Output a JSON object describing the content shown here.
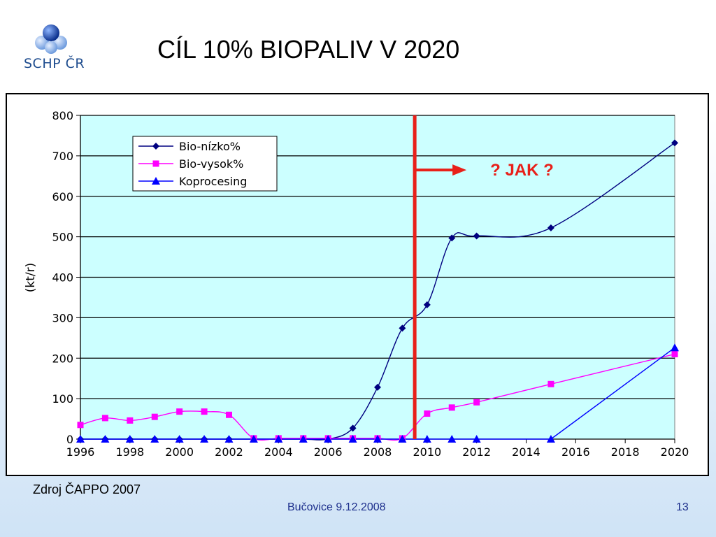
{
  "logo": {
    "text": "SCHP ČR"
  },
  "title": "CÍL 10% BIOPALIV V 2020",
  "source": "Zdroj ČAPPO 2007",
  "footer": {
    "center": "Bučovice 9.12.2008",
    "page": "13"
  },
  "colors": {
    "plot_bg": "#ccffff",
    "bio_nizko": "#000080",
    "bio_vysok": "#ff00ff",
    "koprocesing": "#0000ff",
    "marker_line": "#e8201a"
  },
  "chart_data": {
    "type": "line",
    "title": "",
    "xlabel": "",
    "ylabel": "(kt/r)",
    "xlim": [
      1996,
      2020
    ],
    "ylim": [
      0,
      800
    ],
    "x_ticks": [
      1996,
      1998,
      2000,
      2002,
      2004,
      2006,
      2008,
      2010,
      2012,
      2014,
      2016,
      2018,
      2020
    ],
    "y_ticks": [
      0,
      100,
      200,
      300,
      400,
      500,
      600,
      700,
      800
    ],
    "grid": "horizontal",
    "legend_position": "top-left",
    "series": [
      {
        "name": "Bio-nízko%",
        "marker": "diamond",
        "color": "#000080",
        "x": [
          1996,
          1997,
          1998,
          1999,
          2000,
          2001,
          2002,
          2003,
          2004,
          2005,
          2006,
          2007,
          2008,
          2009,
          2010,
          2011,
          2012,
          2015,
          2020
        ],
        "y": [
          0,
          0,
          0,
          0,
          0,
          0,
          0,
          0,
          0,
          0,
          0,
          27,
          128,
          274,
          332,
          497,
          502,
          522,
          732
        ]
      },
      {
        "name": "Bio-vysok%",
        "marker": "square",
        "color": "#ff00ff",
        "x": [
          1996,
          1997,
          1998,
          1999,
          2000,
          2001,
          2002,
          2003,
          2004,
          2005,
          2006,
          2007,
          2008,
          2009,
          2010,
          2011,
          2012,
          2015,
          2020
        ],
        "y": [
          35,
          52,
          46,
          55,
          68,
          68,
          60,
          2,
          2,
          2,
          2,
          2,
          2,
          2,
          63,
          78,
          91,
          136,
          210
        ]
      },
      {
        "name": "Koprocesing",
        "marker": "triangle",
        "color": "#0000ff",
        "x": [
          1996,
          1997,
          1998,
          1999,
          2000,
          2001,
          2002,
          2003,
          2004,
          2005,
          2006,
          2007,
          2008,
          2009,
          2010,
          2011,
          2012,
          2015,
          2020
        ],
        "y": [
          0,
          0,
          0,
          0,
          0,
          0,
          0,
          0,
          0,
          0,
          0,
          0,
          0,
          0,
          0,
          0,
          0,
          0,
          226
        ]
      }
    ],
    "annotations": [
      {
        "text": "? JAK ?",
        "vertical_line_x": 2009.5
      }
    ]
  }
}
